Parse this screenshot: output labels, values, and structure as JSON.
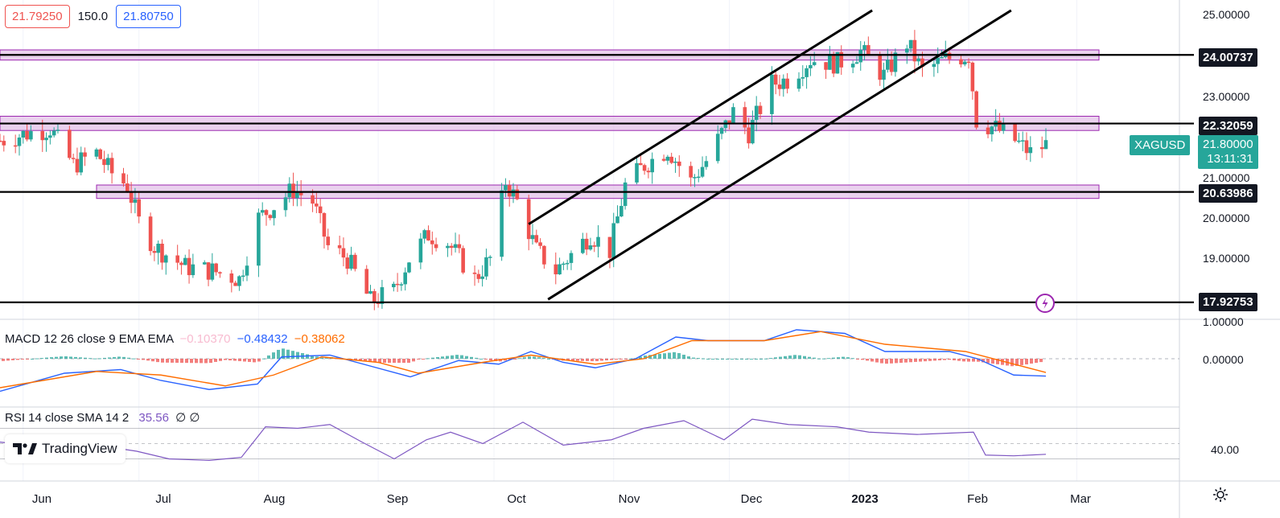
{
  "header": {
    "bid": "21.79250",
    "spread": "150.0",
    "ask": "21.80750"
  },
  "price_axis": {
    "ticks": [
      "25.00000",
      "23.00000",
      "21.00000",
      "20.00000",
      "19.00000",
      "1.00000",
      "0.00000",
      "40.00"
    ],
    "level_labels": [
      "24.00737",
      "22.32059",
      "20.63986",
      "17.92753"
    ],
    "symbol": "XAGUSD",
    "last_price": "21.80000",
    "countdown": "13:11:31"
  },
  "time_axis": [
    "Jun",
    "Jul",
    "Aug",
    "Sep",
    "Oct",
    "Nov",
    "Dec",
    "2023",
    "Feb",
    "Mar"
  ],
  "macd": {
    "label": "MACD 12 26 close 9 EMA EMA",
    "hist": "−0.10370",
    "macd": "−0.48432",
    "signal": "−0.38062"
  },
  "rsi": {
    "label": "RSI 14 close SMA 14 2",
    "value": "35.56",
    "extra": "∅ ∅"
  },
  "brand": "TradingView",
  "colors": {
    "up": "#26a69a",
    "down": "#ef5350",
    "zone_fill": "#e1bee7",
    "zone_border": "#9c27b0",
    "macd_line": "#2962ff",
    "signal_line": "#ff6d00",
    "rsi_line": "#7e57c2"
  },
  "chart_data": {
    "type": "candlestick",
    "symbol": "XAGUSD",
    "date_range": [
      "2022-05-26",
      "2023-02-21"
    ],
    "ylim": [
      17.5,
      25.2
    ],
    "horizontal_levels": [
      24.00737,
      22.32059,
      20.63986,
      17.92753
    ],
    "zones": [
      [
        23.88,
        24.13
      ],
      [
        22.15,
        22.5
      ],
      [
        20.48,
        20.81
      ]
    ],
    "trend_channel": {
      "upper": [
        [
          "2022-10-10",
          19.85
        ],
        [
          "2023-01-07",
          25.1
        ]
      ],
      "lower": [
        [
          "2022-10-15",
          18.0
        ],
        [
          "2023-02-12",
          25.1
        ]
      ]
    },
    "close_path": [
      [
        "2022-05-26",
        21.9
      ],
      [
        "2022-06-03",
        22.1
      ],
      [
        "2022-06-08",
        22.2
      ],
      [
        "2022-06-14",
        21.3
      ],
      [
        "2022-06-20",
        21.6
      ],
      [
        "2022-06-24",
        21.1
      ],
      [
        "2022-06-28",
        20.8
      ],
      [
        "2022-07-01",
        19.9
      ],
      [
        "2022-07-05",
        19.3
      ],
      [
        "2022-07-13",
        18.8
      ],
      [
        "2022-07-20",
        18.7
      ],
      [
        "2022-07-27",
        18.5
      ],
      [
        "2022-08-01",
        20.0
      ],
      [
        "2022-08-05",
        20.3
      ],
      [
        "2022-08-10",
        20.7
      ],
      [
        "2022-08-15",
        20.4
      ],
      [
        "2022-08-19",
        19.3
      ],
      [
        "2022-08-24",
        19.0
      ],
      [
        "2022-08-30",
        17.95
      ],
      [
        "2022-09-05",
        18.2
      ],
      [
        "2022-09-09",
        19.0
      ],
      [
        "2022-09-14",
        19.6
      ],
      [
        "2022-09-19",
        19.4
      ],
      [
        "2022-09-26",
        18.5
      ],
      [
        "2022-09-30",
        19.0
      ],
      [
        "2022-10-04",
        20.9
      ],
      [
        "2022-10-07",
        20.4
      ],
      [
        "2022-10-12",
        19.2
      ],
      [
        "2022-10-17",
        18.7
      ],
      [
        "2022-10-21",
        19.1
      ],
      [
        "2022-10-26",
        19.6
      ],
      [
        "2022-10-31",
        19.2
      ],
      [
        "2022-11-04",
        20.8
      ],
      [
        "2022-11-09",
        21.3
      ],
      [
        "2022-11-15",
        21.7
      ],
      [
        "2022-11-21",
        20.9
      ],
      [
        "2022-11-25",
        21.4
      ],
      [
        "2022-12-02",
        22.6
      ],
      [
        "2022-12-06",
        22.1
      ],
      [
        "2022-12-12",
        23.3
      ],
      [
        "2022-12-16",
        23.4
      ],
      [
        "2022-12-22",
        23.9
      ],
      [
        "2022-12-29",
        23.8
      ],
      [
        "2023-01-04",
        24.1
      ],
      [
        "2023-01-10",
        23.5
      ],
      [
        "2023-01-16",
        24.3
      ],
      [
        "2023-01-20",
        23.6
      ],
      [
        "2023-01-26",
        23.9
      ],
      [
        "2023-02-01",
        24.0
      ],
      [
        "2023-02-03",
        22.4
      ],
      [
        "2023-02-08",
        22.2
      ],
      [
        "2023-02-13",
        21.9
      ],
      [
        "2023-02-17",
        21.6
      ],
      [
        "2023-02-21",
        21.8
      ]
    ],
    "macd": {
      "macd": -0.48432,
      "signal": -0.38062,
      "hist": -0.1037
    },
    "rsi": {
      "value": 35.56,
      "reference": 40
    }
  }
}
